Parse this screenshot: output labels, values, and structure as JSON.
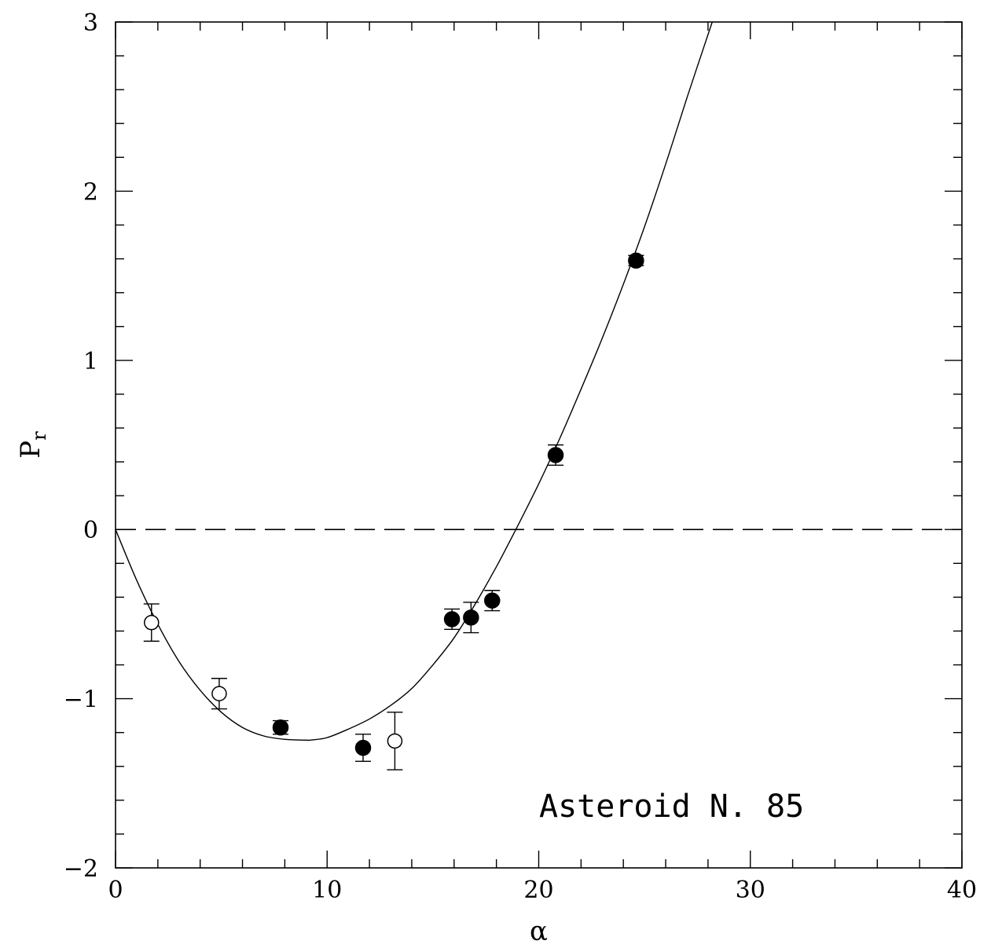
{
  "chart_data": {
    "type": "scatter",
    "title": "",
    "xlabel": "α",
    "ylabel": "P",
    "ylabel_subscript": "r",
    "xlim": [
      0,
      40
    ],
    "ylim": [
      -2,
      3
    ],
    "xticks": [
      0,
      10,
      20,
      30,
      40
    ],
    "yticks": [
      -2,
      -1,
      0,
      1,
      2,
      3
    ],
    "xtick_labels": [
      "0",
      "10",
      "20",
      "30",
      "40"
    ],
    "ytick_labels": [
      "−2",
      "−1",
      "0",
      "1",
      "2",
      "3"
    ],
    "x_minor_step": 2,
    "y_minor_step": 0.2,
    "grid": false,
    "legend": null,
    "annotation": "Asteroid N. 85",
    "zero_line": {
      "y": 0,
      "style": "dashed"
    },
    "fit_curve": {
      "description": "phase-polarization fit",
      "x": [
        0,
        1,
        2,
        3,
        4,
        5,
        6,
        7,
        8,
        9,
        9.25,
        10,
        11,
        12,
        13,
        14,
        15,
        16,
        17,
        18,
        19,
        20,
        21,
        22,
        23,
        24,
        25,
        26,
        27,
        28.2
      ],
      "y": [
        0,
        -0.3,
        -0.56,
        -0.78,
        -0.95,
        -1.08,
        -1.17,
        -1.22,
        -1.24,
        -1.245,
        -1.244,
        -1.23,
        -1.18,
        -1.12,
        -1.04,
        -0.94,
        -0.8,
        -0.64,
        -0.44,
        -0.22,
        0.02,
        0.27,
        0.54,
        0.83,
        1.13,
        1.45,
        1.79,
        2.16,
        2.55,
        3.0
      ]
    },
    "series": [
      {
        "marker": "filled-circle",
        "points": [
          {
            "x": 7.8,
            "y": -1.17,
            "err": 0.04
          },
          {
            "x": 11.7,
            "y": -1.29,
            "err": 0.08
          },
          {
            "x": 15.9,
            "y": -0.53,
            "err": 0.06
          },
          {
            "x": 16.8,
            "y": -0.52,
            "err": 0.09
          },
          {
            "x": 17.8,
            "y": -0.42,
            "err": 0.06
          },
          {
            "x": 20.8,
            "y": 0.44,
            "err": 0.06
          },
          {
            "x": 24.6,
            "y": 1.59,
            "err": 0.03
          }
        ]
      },
      {
        "marker": "open-circle",
        "points": [
          {
            "x": 1.7,
            "y": -0.55,
            "err": 0.11
          },
          {
            "x": 4.9,
            "y": -0.97,
            "err": 0.09
          },
          {
            "x": 13.2,
            "y": -1.25,
            "err": 0.17
          }
        ]
      }
    ],
    "colors": {
      "foreground": "#000000",
      "background": "#ffffff"
    }
  }
}
